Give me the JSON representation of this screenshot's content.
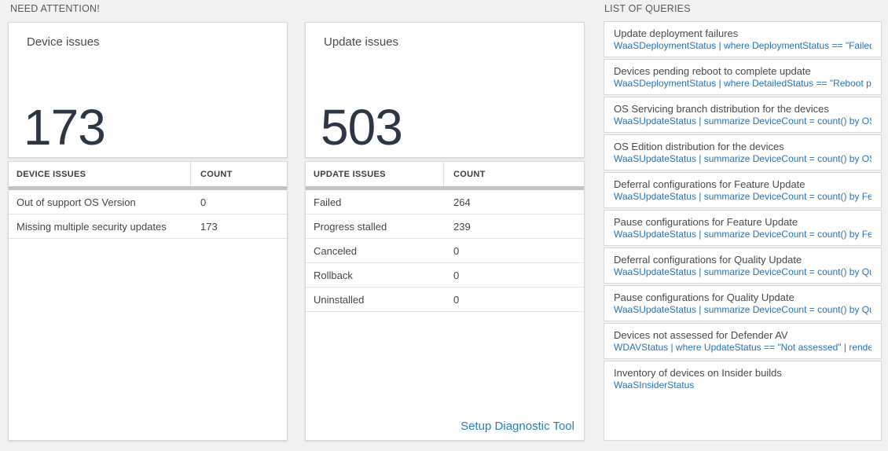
{
  "colors": {
    "accent_blue": "#2673bd",
    "big_number_color": "#2c3645",
    "page_background": "#f1f1f1"
  },
  "section_headers": {
    "need_attention": "NEED ATTENTION!",
    "list_of_queries": "LIST OF QUERIES"
  },
  "cards": [
    {
      "title": "Device issues",
      "big_number": "173",
      "table": {
        "columns": [
          "DEVICE ISSUES",
          "COUNT"
        ],
        "rows": [
          {
            "label": "Out of support OS Version",
            "count": "0"
          },
          {
            "label": "Missing multiple security updates",
            "count": "173"
          }
        ]
      }
    },
    {
      "title": "Update issues",
      "big_number": "503",
      "table": {
        "columns": [
          "UPDATE ISSUES",
          "COUNT"
        ],
        "rows": [
          {
            "label": "Failed",
            "count": "264"
          },
          {
            "label": "Progress stalled",
            "count": "239"
          },
          {
            "label": "Canceled",
            "count": "0"
          },
          {
            "label": "Rollback",
            "count": "0"
          },
          {
            "label": "Uninstalled",
            "count": "0"
          }
        ]
      },
      "footer_link": "Setup Diagnostic Tool"
    }
  ],
  "queries": [
    {
      "title": "Update deployment failures",
      "query": "WaaSDeploymentStatus | where DeploymentStatus == \"Failed\" |..."
    },
    {
      "title": "Devices pending reboot to complete update",
      "query": "WaaSDeploymentStatus | where DetailedStatus == \"Reboot pend..."
    },
    {
      "title": "OS Servicing branch distribution for the devices",
      "query": "WaaSUpdateStatus | summarize DeviceCount = count() by OSSer..."
    },
    {
      "title": "OS Edition distribution for the devices",
      "query": "WaaSUpdateStatus | summarize DeviceCount = count() by OSEdit..."
    },
    {
      "title": "Deferral configurations for Feature Update",
      "query": "WaaSUpdateStatus | summarize DeviceCount = count() by Featur..."
    },
    {
      "title": "Pause configurations for Feature Update",
      "query": "WaaSUpdateStatus | summarize DeviceCount = count() by Featur..."
    },
    {
      "title": "Deferral configurations for Quality Update",
      "query": "WaaSUpdateStatus | summarize DeviceCount = count() by Qualit..."
    },
    {
      "title": "Pause configurations for Quality Update",
      "query": "WaaSUpdateStatus | summarize DeviceCount = count() by Qualit..."
    },
    {
      "title": "Devices not assessed for Defender AV",
      "query": "WDAVStatus | where UpdateStatus == \"Not assessed\" | render ta..."
    },
    {
      "title": "Inventory of devices on Insider builds",
      "query": "WaaSInsiderStatus"
    }
  ]
}
